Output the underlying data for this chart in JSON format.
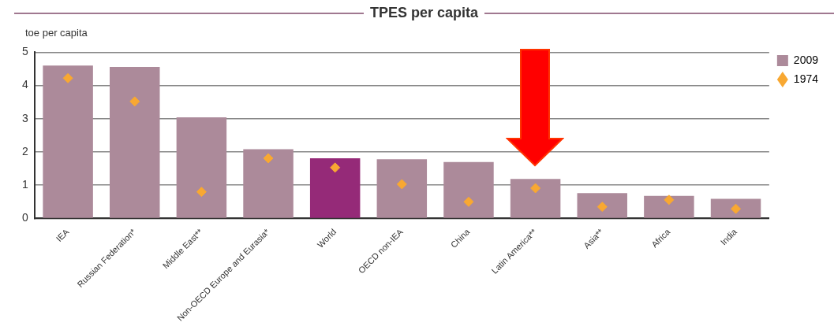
{
  "chart_data": {
    "type": "bar",
    "title": "TPES per capita",
    "ylabel": "toe per capita",
    "categories": [
      "IEA",
      "Russian Federation*",
      "Middle East**",
      "Non-OECD Europe and Eurasia*",
      "World",
      "OECD non-IEA",
      "China",
      "Latin America**",
      "Asia**",
      "Africa",
      "India"
    ],
    "series": [
      {
        "name": "2009",
        "color": "#ac8a9a",
        "colors": [
          "#ac8a9a",
          "#ac8a9a",
          "#ac8a9a",
          "#ac8a9a",
          "#952a78",
          "#ac8a9a",
          "#ac8a9a",
          "#ac8a9a",
          "#ac8a9a",
          "#ac8a9a",
          "#ac8a9a"
        ],
        "values": [
          4.6,
          4.56,
          3.04,
          2.08,
          1.81,
          1.78,
          1.7,
          1.19,
          0.76,
          0.68,
          0.59
        ]
      },
      {
        "name": "1974",
        "type": "scatter",
        "color": "#f8a832",
        "values": [
          4.22,
          3.52,
          0.8,
          1.81,
          1.53,
          1.03,
          0.5,
          0.91,
          0.35,
          0.56,
          0.29
        ]
      }
    ],
    "ylim": [
      0,
      5
    ],
    "yticks": [
      0,
      1,
      2,
      3,
      4,
      5
    ],
    "grid": "y",
    "legend": "right",
    "marker": "diamond"
  }
}
